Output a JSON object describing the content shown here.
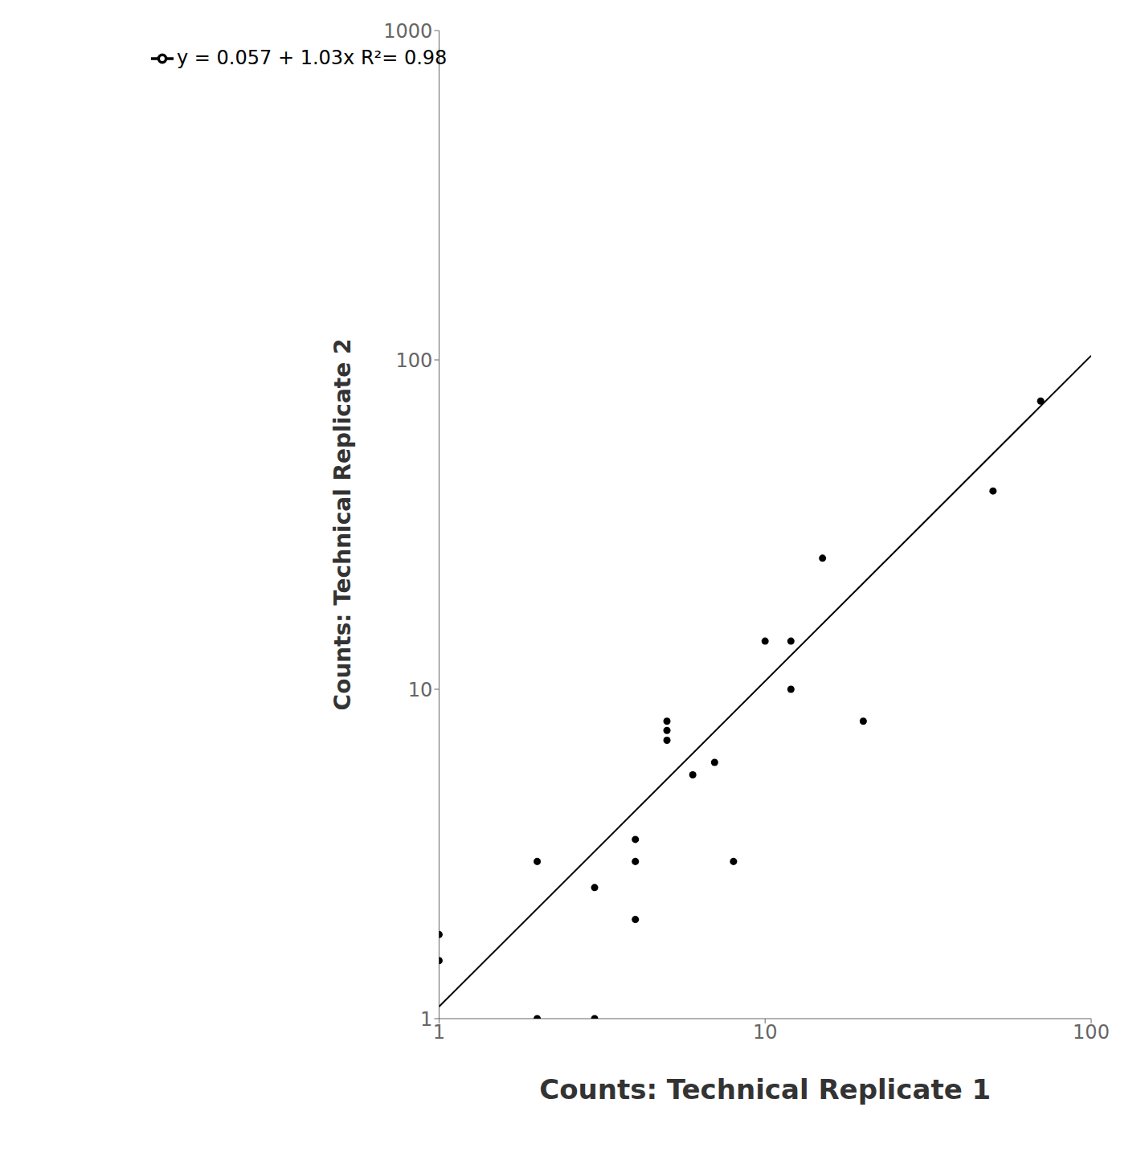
{
  "chart_data": {
    "type": "scatter",
    "xlabel": "Counts: Technical Replicate 1",
    "ylabel": "Counts: Technical Replicate 2",
    "log": true,
    "grid": false,
    "legend": "upper left",
    "xlim": [
      1,
      100
    ],
    "ylim": [
      1,
      1000
    ],
    "xticks": [
      1,
      10,
      100
    ],
    "yticks": [
      1,
      10,
      100,
      1000
    ],
    "series": [
      {
        "type": "scatter",
        "marker": "circle",
        "color": "#000000",
        "x": [
          1,
          1,
          2,
          2,
          3,
          3,
          4,
          4,
          4,
          5,
          5,
          5,
          6,
          7,
          8,
          10,
          12,
          12,
          15,
          20,
          50,
          70
        ],
        "values": [
          1.5,
          1.8,
          1,
          3,
          2.5,
          1,
          3,
          3.5,
          2.0,
          7,
          7.5,
          8,
          5.5,
          6,
          3,
          14,
          10,
          14,
          25,
          8,
          40,
          75
        ]
      },
      {
        "type": "line",
        "line_style": "solid",
        "name": "y = 0.057 + 1.03x   R²= 0.98",
        "color": "#000000",
        "x": [
          1,
          100
        ],
        "values": [
          1.087,
          103.057
        ]
      }
    ]
  }
}
